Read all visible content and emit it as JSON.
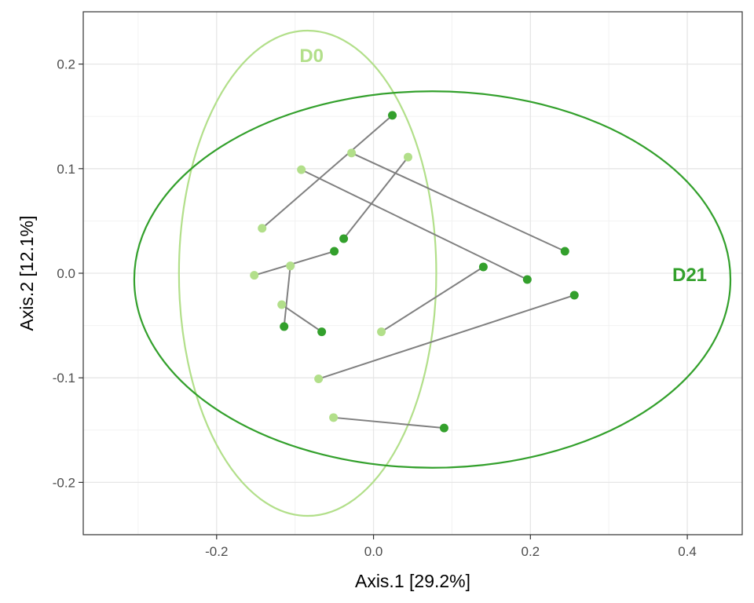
{
  "chart_data": {
    "type": "scatter",
    "xlabel": "Axis.1   [29.2%]",
    "ylabel": "Axis.2   [12.1%]",
    "xlim": [
      -0.37,
      0.47
    ],
    "ylim": [
      -0.25,
      0.25
    ],
    "x_ticks": [
      -0.2,
      0.0,
      0.2,
      0.4
    ],
    "x_tick_labels": [
      "-0.2",
      "0.0",
      "0.2",
      "0.4"
    ],
    "y_ticks": [
      -0.2,
      -0.1,
      0.0,
      0.1,
      0.2
    ],
    "y_tick_labels": [
      "-0.2",
      "-0.1",
      "0.0",
      "0.1",
      "0.2"
    ],
    "grid": true,
    "legend": "none",
    "groups": [
      {
        "label": "D0",
        "color": "#b2df8a",
        "points": [
          {
            "x": -0.142,
            "y": 0.043
          },
          {
            "x": -0.092,
            "y": 0.099
          },
          {
            "x": -0.028,
            "y": 0.115
          },
          {
            "x": 0.044,
            "y": 0.111
          },
          {
            "x": -0.152,
            "y": -0.002
          },
          {
            "x": -0.106,
            "y": 0.007
          },
          {
            "x": -0.117,
            "y": -0.03
          },
          {
            "x": 0.01,
            "y": -0.056
          },
          {
            "x": -0.07,
            "y": -0.101
          },
          {
            "x": -0.051,
            "y": -0.138
          }
        ],
        "ellipse": {
          "cx": -0.084,
          "cy": 0.0,
          "rx": 0.164,
          "ry": 0.232
        }
      },
      {
        "label": "D21",
        "color": "#33a02c",
        "points": [
          {
            "x": 0.024,
            "y": 0.151
          },
          {
            "x": 0.244,
            "y": 0.021
          },
          {
            "x": -0.038,
            "y": 0.033
          },
          {
            "x": 0.196,
            "y": -0.006
          },
          {
            "x": -0.05,
            "y": 0.021
          },
          {
            "x": -0.066,
            "y": -0.056
          },
          {
            "x": -0.114,
            "y": -0.051
          },
          {
            "x": 0.14,
            "y": 0.006
          },
          {
            "x": 0.256,
            "y": -0.021
          },
          {
            "x": 0.09,
            "y": -0.148
          }
        ],
        "ellipse": {
          "cx": 0.075,
          "cy": -0.006,
          "rx": 0.38,
          "ry": 0.18
        }
      }
    ],
    "pairs": [
      {
        "from": {
          "x": -0.142,
          "y": 0.043
        },
        "to": {
          "x": 0.024,
          "y": 0.151
        }
      },
      {
        "from": {
          "x": -0.028,
          "y": 0.115
        },
        "to": {
          "x": 0.244,
          "y": 0.021
        }
      },
      {
        "from": {
          "x": 0.044,
          "y": 0.111
        },
        "to": {
          "x": -0.038,
          "y": 0.033
        }
      },
      {
        "from": {
          "x": -0.092,
          "y": 0.099
        },
        "to": {
          "x": 0.196,
          "y": -0.006
        }
      },
      {
        "from": {
          "x": -0.152,
          "y": -0.002
        },
        "to": {
          "x": -0.05,
          "y": 0.021
        }
      },
      {
        "from": {
          "x": -0.106,
          "y": 0.007
        },
        "to": {
          "x": -0.114,
          "y": -0.051
        }
      },
      {
        "from": {
          "x": -0.117,
          "y": -0.03
        },
        "to": {
          "x": -0.066,
          "y": -0.056
        }
      },
      {
        "from": {
          "x": 0.01,
          "y": -0.056
        },
        "to": {
          "x": 0.14,
          "y": 0.006
        }
      },
      {
        "from": {
          "x": -0.07,
          "y": -0.101
        },
        "to": {
          "x": 0.256,
          "y": -0.021
        }
      },
      {
        "from": {
          "x": -0.051,
          "y": -0.138
        },
        "to": {
          "x": 0.09,
          "y": -0.148
        }
      }
    ],
    "pair_line_color": "#808080"
  }
}
